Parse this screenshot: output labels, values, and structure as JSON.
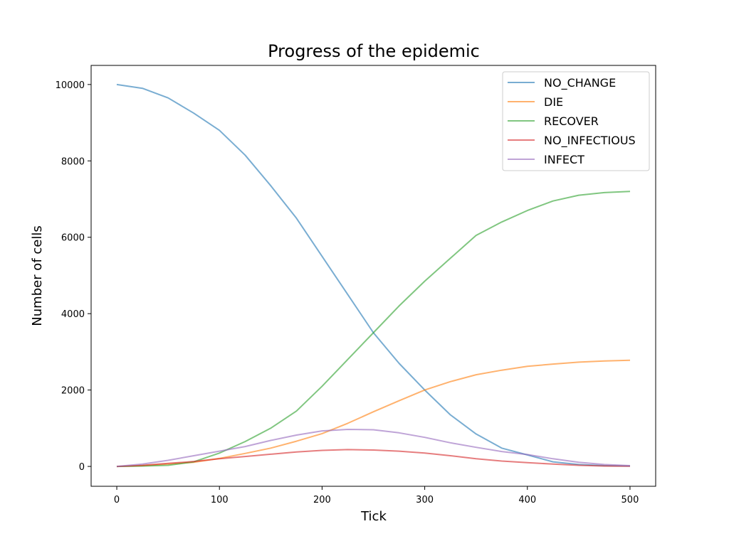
{
  "chart_data": {
    "type": "line",
    "title": "Progress of the epidemic",
    "xlabel": "Tick",
    "ylabel": "Number of cells",
    "xlim": [
      -25,
      525
    ],
    "ylim": [
      -520,
      10500
    ],
    "xticks": [
      0,
      100,
      200,
      300,
      400,
      500
    ],
    "yticks": [
      0,
      2000,
      4000,
      6000,
      8000,
      10000
    ],
    "grid": false,
    "legend_position": "top-right",
    "x": [
      0,
      25,
      50,
      75,
      100,
      125,
      150,
      175,
      200,
      225,
      250,
      275,
      300,
      325,
      350,
      375,
      400,
      425,
      450,
      475,
      500
    ],
    "series": [
      {
        "name": "NO_CHANGE",
        "color": "#1f77b4",
        "values": [
          10000,
          9900,
          9650,
          9250,
          8800,
          8150,
          7350,
          6500,
          5500,
          4500,
          3500,
          2700,
          2000,
          1350,
          850,
          480,
          300,
          120,
          50,
          20,
          10
        ]
      },
      {
        "name": "DIE",
        "color": "#ff7f0e",
        "values": [
          0,
          20,
          60,
          110,
          210,
          340,
          480,
          660,
          860,
          1130,
          1430,
          1720,
          2000,
          2220,
          2400,
          2520,
          2620,
          2680,
          2730,
          2760,
          2780
        ]
      },
      {
        "name": "RECOVER",
        "color": "#2ca02c",
        "values": [
          0,
          10,
          30,
          120,
          350,
          650,
          1000,
          1450,
          2100,
          2800,
          3500,
          4200,
          4850,
          5450,
          6050,
          6400,
          6700,
          6950,
          7100,
          7170,
          7200
        ]
      },
      {
        "name": "NO_INFECTIOUS",
        "color": "#d62728",
        "values": [
          0,
          30,
          80,
          130,
          200,
          260,
          320,
          380,
          420,
          440,
          430,
          400,
          350,
          280,
          200,
          140,
          100,
          60,
          30,
          10,
          5
        ]
      },
      {
        "name": "INFECT",
        "color": "#9467bd",
        "values": [
          0,
          60,
          160,
          280,
          400,
          520,
          680,
          820,
          930,
          970,
          960,
          880,
          760,
          620,
          500,
          390,
          310,
          200,
          110,
          50,
          20
        ]
      }
    ]
  }
}
